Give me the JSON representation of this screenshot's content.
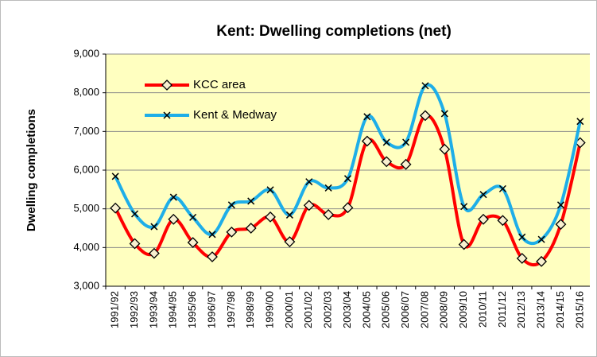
{
  "chart_data": {
    "type": "line",
    "title": "Kent: Dwelling completions (net)",
    "y_label": "Dwelling completions",
    "categories": [
      "1991/92",
      "1992/93",
      "1993/94",
      "1994/95",
      "1995/96",
      "1996/97",
      "1997/98",
      "1998/99",
      "1999/00",
      "2000/01",
      "2001/02",
      "2002/03",
      "2003/04",
      "2004/05",
      "2005/06",
      "2006/07",
      "2007/08",
      "2008/09",
      "2009/10",
      "2010/11",
      "2011/12",
      "2012/13",
      "2013/14",
      "2014/15",
      "2015/16"
    ],
    "series": [
      {
        "name": "KCC area",
        "color": "#ff0000",
        "values": [
          5020,
          4100,
          3850,
          4730,
          4130,
          3760,
          4400,
          4500,
          4790,
          4150,
          5090,
          4850,
          5030,
          6750,
          6220,
          6150,
          7410,
          6540,
          4080,
          4730,
          4700,
          3720,
          3640,
          4600,
          6710
        ]
      },
      {
        "name": "Kent & Medway",
        "color": "#1eaee8",
        "values": [
          5840,
          4870,
          4540,
          5300,
          4780,
          4340,
          5100,
          5200,
          5490,
          4840,
          5700,
          5540,
          5780,
          7380,
          6720,
          6720,
          8180,
          7460,
          5060,
          5370,
          5520,
          4270,
          4210,
          5100,
          7260
        ]
      }
    ],
    "ylim": [
      3000,
      9000
    ],
    "yticks": [
      {
        "value": 3000,
        "label": "3,000"
      },
      {
        "value": 4000,
        "label": "4,000"
      },
      {
        "value": 5000,
        "label": "5,000"
      },
      {
        "value": 6000,
        "label": "6,000"
      },
      {
        "value": 7000,
        "label": "7,000"
      },
      {
        "value": 8000,
        "label": "8,000"
      },
      {
        "value": 9000,
        "label": "9,000"
      }
    ],
    "grid": true,
    "smooth": true,
    "legend_position": "upper left",
    "plot_background": "#ffffc0"
  }
}
